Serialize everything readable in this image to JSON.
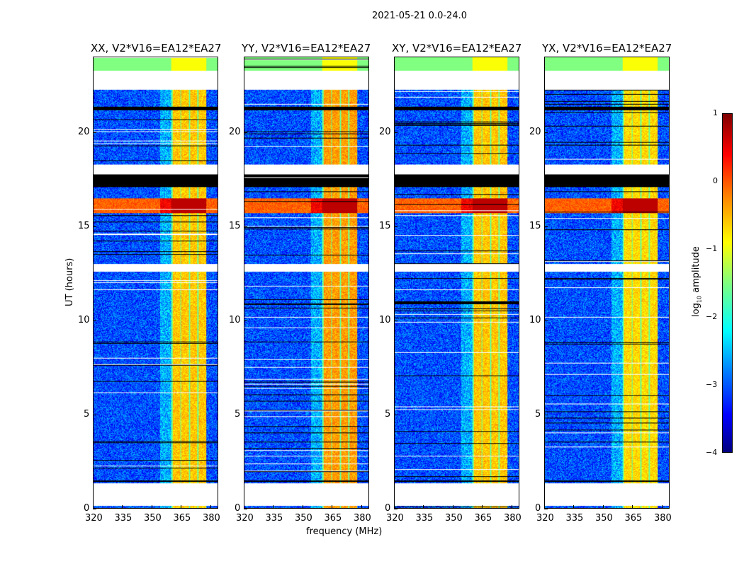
{
  "figure": {
    "suptitle": "2021-05-21 0.0-24.0",
    "xlabel": "frequency (MHz)",
    "ylabel": "UT (hours)"
  },
  "colorbar": {
    "label_main": "log",
    "label_sub": "10",
    "label_rest": " amplitude",
    "ticks": [
      "1",
      "0",
      "−1",
      "−2",
      "−3",
      "−4"
    ],
    "range": [
      -4,
      1
    ]
  },
  "chart_data": {
    "type": "heatmap",
    "title": "2021-05-21 0.0-24.0",
    "xlabel": "frequency (MHz)",
    "ylabel": "UT (hours)",
    "xlim": [
      320,
      384
    ],
    "ylim": [
      0,
      24
    ],
    "xticks": [
      "320",
      "335",
      "350",
      "365",
      "380"
    ],
    "yticks": [
      "0",
      "5",
      "10",
      "15",
      "20"
    ],
    "colormap": "jet",
    "clim": [
      -4,
      1
    ],
    "panels": [
      {
        "title": "XX, V2*V16=EA12*EA27",
        "rfi_level": -0.6
      },
      {
        "title": "YY, V2*V16=EA12*EA27",
        "rfi_level": -0.4
      },
      {
        "title": "XY, V2*V16=EA12*EA27",
        "rfi_level": -0.6
      },
      {
        "title": "YX, V2*V16=EA12*EA27",
        "rfi_level": -0.7
      }
    ],
    "background_level": -3.0,
    "rfi_band_mhz": [
      360,
      378
    ],
    "blank_hours": [
      [
        0.15,
        1.35
      ],
      [
        12.6,
        13.0
      ],
      [
        17.8,
        18.3
      ],
      [
        22.3,
        23.3
      ]
    ],
    "strong_rfi_hours": [
      [
        15.7,
        16.5
      ]
    ],
    "flagged_black_hours": [
      [
        17.1,
        17.8
      ],
      [
        1.4,
        1.5
      ],
      [
        21.2,
        21.4
      ]
    ]
  }
}
